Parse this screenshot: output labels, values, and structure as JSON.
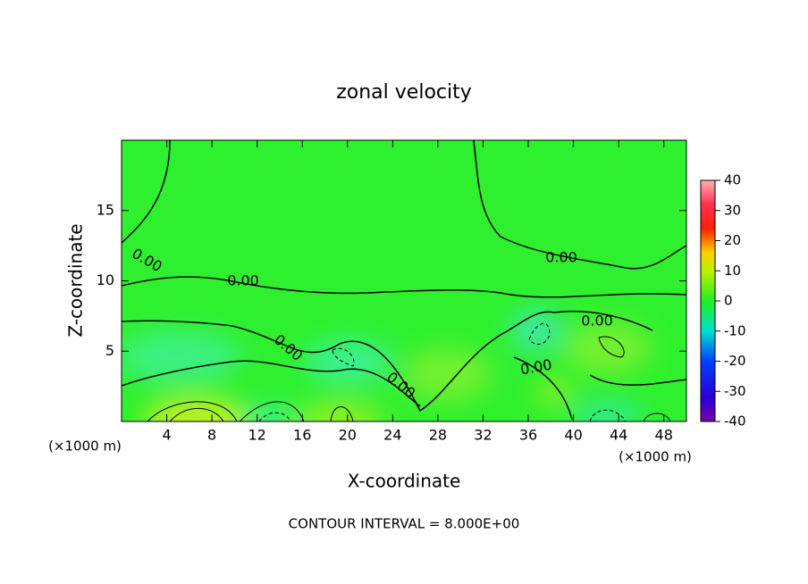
{
  "chart_data": {
    "type": "heatmap",
    "title": "zonal velocity",
    "x_label": "X-coordinate",
    "y_label": "Z-coordinate",
    "x_unit_label": "(×1000 m)",
    "y_unit_label": "(×1000 m)",
    "xlim": [
      0,
      50
    ],
    "xticks": [
      4,
      8,
      12,
      16,
      20,
      24,
      28,
      32,
      36,
      40,
      44,
      48
    ],
    "ylim": [
      0,
      20
    ],
    "yticks": [
      5,
      10,
      15
    ],
    "colorbar": {
      "lim": [
        -40,
        40
      ],
      "ticks": [
        -40,
        -30,
        -20,
        -10,
        0,
        10,
        20,
        30,
        40
      ]
    },
    "contour_labels": [
      "0.00",
      "0.00",
      "0.00",
      "0.00",
      "0.00",
      "0.00",
      "0.00"
    ],
    "footnote": "CONTOUR INTERVAL = 8.000E+00"
  }
}
